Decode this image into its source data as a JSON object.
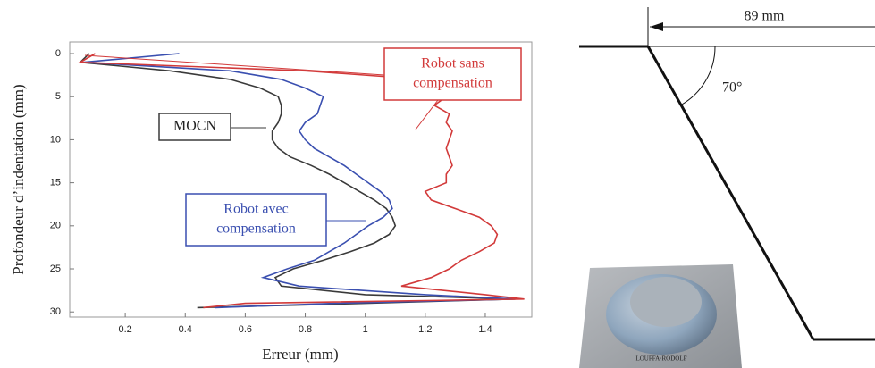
{
  "chart_data": {
    "type": "line",
    "orientation": "vertical-depth",
    "x_label": "Erreur (mm)",
    "y_label": "Profondeur d’indentation (mm)",
    "xlim": [
      0.015,
      1.555
    ],
    "ylim": [
      30.6,
      -1.35
    ],
    "xticks": [
      0.2,
      0.4,
      0.6,
      0.8,
      1,
      1.2,
      1.4
    ],
    "yticks": [
      0,
      5,
      10,
      15,
      20,
      25,
      30
    ],
    "y": [
      0,
      1,
      2,
      3,
      4,
      5,
      6,
      7,
      8,
      9,
      10,
      11,
      12,
      13,
      14,
      15,
      16,
      17,
      18,
      19,
      20,
      21,
      22,
      23,
      24,
      25,
      26,
      27,
      28,
      28.5,
      29,
      29.5
    ],
    "series": [
      {
        "color": "#3a3a3a",
        "values": [
          0.08,
          0.05,
          0.35,
          0.55,
          0.65,
          0.71,
          0.72,
          0.72,
          0.71,
          0.69,
          0.69,
          0.71,
          0.75,
          0.82,
          0.88,
          0.93,
          0.98,
          1.03,
          1.07,
          1.09,
          1.1,
          1.08,
          1.03,
          0.95,
          0.86,
          0.76,
          0.7,
          0.72,
          1.0,
          1.5,
          1.0,
          0.44
        ]
      },
      {
        "color": "#3a4fb0",
        "values": [
          0.38,
          0.06,
          0.55,
          0.72,
          0.8,
          0.86,
          0.85,
          0.84,
          0.8,
          0.78,
          0.8,
          0.83,
          0.88,
          0.93,
          0.97,
          1.01,
          1.05,
          1.08,
          1.09,
          1.06,
          1.01,
          0.97,
          0.93,
          0.88,
          0.83,
          0.74,
          0.66,
          0.78,
          1.2,
          1.5,
          0.9,
          0.5
        ]
      },
      {
        "color": "#d23a3a",
        "values": [
          0.1,
          0.05,
          0.8,
          1.2,
          1.25,
          1.27,
          1.23,
          1.28,
          1.27,
          1.29,
          1.28,
          1.27,
          1.28,
          1.29,
          1.27,
          1.27,
          1.2,
          1.22,
          1.3,
          1.38,
          1.42,
          1.44,
          1.43,
          1.38,
          1.32,
          1.28,
          1.22,
          1.12,
          1.4,
          1.53,
          0.6,
          0.46
        ]
      }
    ],
    "annotations": [
      {
        "lines": [
          "MOCN"
        ],
        "color": "#3a3a3a"
      },
      {
        "lines": [
          "Robot avec",
          "compensation"
        ],
        "color": "#3a4fb0"
      },
      {
        "lines": [
          "Robot sans",
          "compensation"
        ],
        "color": "#d23a3a"
      }
    ]
  },
  "diagram": {
    "dimension": "89 mm",
    "angle": "70°"
  }
}
